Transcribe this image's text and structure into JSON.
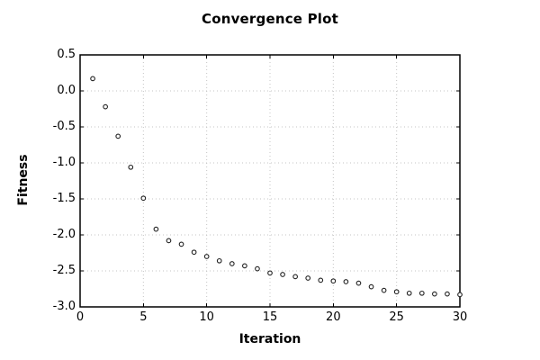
{
  "page": {
    "background": "#ffffff"
  },
  "chart_data": {
    "type": "scatter",
    "title": "Convergence Plot",
    "xlabel": "Iteration",
    "ylabel": "Fitness",
    "x": [
      1,
      2,
      3,
      4,
      5,
      6,
      7,
      8,
      9,
      10,
      11,
      12,
      13,
      14,
      15,
      16,
      17,
      18,
      19,
      20,
      21,
      22,
      23,
      24,
      25,
      26,
      27,
      28,
      29,
      30
    ],
    "y": [
      0.17,
      -0.22,
      -0.63,
      -1.06,
      -1.49,
      -1.92,
      -2.08,
      -2.13,
      -2.24,
      -2.3,
      -2.36,
      -2.4,
      -2.43,
      -2.47,
      -2.53,
      -2.55,
      -2.58,
      -2.6,
      -2.63,
      -2.64,
      -2.65,
      -2.67,
      -2.72,
      -2.77,
      -2.79,
      -2.81,
      -2.81,
      -2.82,
      -2.82,
      -2.83
    ],
    "xlim": [
      0,
      30
    ],
    "ylim": [
      -3.0,
      0.5
    ],
    "xticks": [
      0,
      5,
      10,
      15,
      20,
      25,
      30
    ],
    "yticks": [
      -3.0,
      -2.5,
      -2.0,
      -1.5,
      -1.0,
      -0.5,
      0.0,
      0.5
    ],
    "grid": "dotted",
    "legend": "none",
    "marker": "open-circle",
    "colors": {
      "marker_stroke": "#222222",
      "marker_fill": "#ffffff",
      "grid": "#c4c4c4",
      "frame": "#000000",
      "text": "#000000"
    }
  }
}
